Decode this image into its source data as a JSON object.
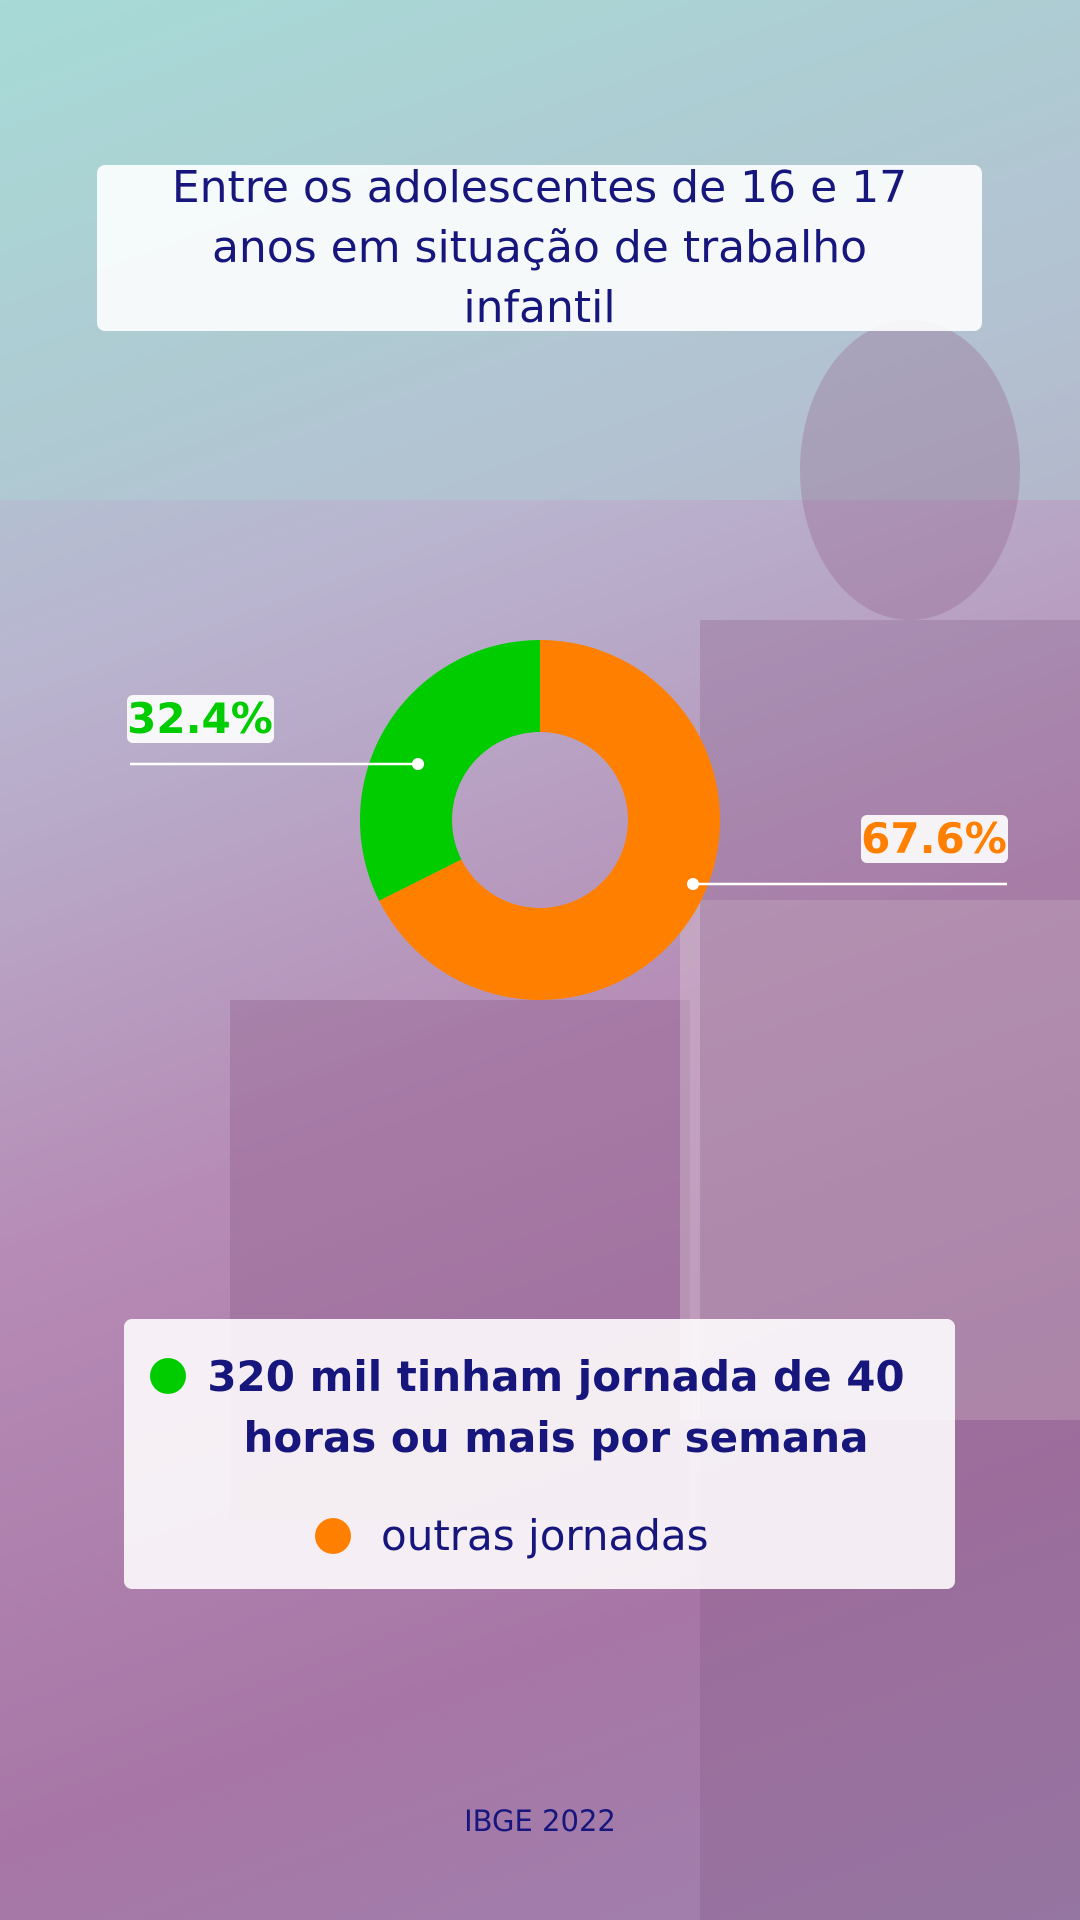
{
  "chart_data": {
    "type": "donut",
    "title": "Entre os adolescentes de 16 e 17 anos em situação de trabalho infantil",
    "categories": [
      "320 mil tinham jornada de 40 horas ou mais por semana",
      "outras jornadas"
    ],
    "values": [
      32.4,
      67.6
    ],
    "value_labels": [
      "32.4%",
      "67.6%"
    ],
    "colors": [
      "#00cc00",
      "#ff8000"
    ],
    "source": "IBGE 2022"
  }
}
